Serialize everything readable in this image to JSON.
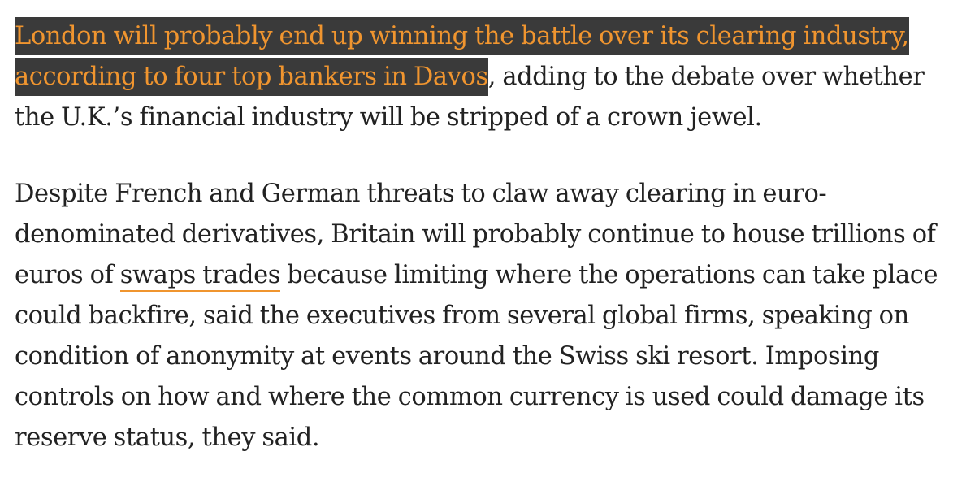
{
  "paragraphs": [
    {
      "highlighted_text": "London will probably end up winning the battle over its clearing industry, according to four top bankers in Davos",
      "after_text": ", adding to the debate over whether the U.K.’s financial industry will be stripped of a crown jewel."
    },
    {
      "before_text": "Despite French and German threats to claw away clearing in euro-denominated derivatives, Britain will probably continue to house trillions of euros of ",
      "link_text": "swaps trades",
      "after_text": " because limiting where the operations can take place could backfire, said the executives from several global firms, speaking on condition of anonymity at events around the Swiss ski resort. Imposing controls on how and where the common currency is used could damage its reserve status, they said."
    }
  ],
  "colors": {
    "highlight_background": "#3a3a3a",
    "highlight_text": "#f0952f",
    "body_text": "#222222",
    "link_underline": "#f0952f"
  }
}
